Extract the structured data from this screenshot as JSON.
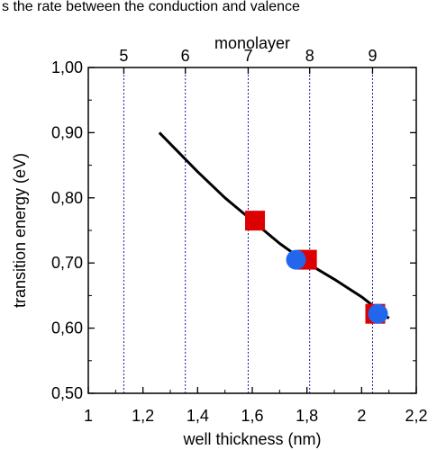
{
  "header_fragment": "s the rate between the conduction and valence",
  "chart_data": {
    "type": "scatter",
    "xlabel": "well thickness (nm)",
    "ylabel": "transition energy (eV)",
    "top_axis_label": "monolayer",
    "xlim": [
      1,
      2.2
    ],
    "ylim": [
      0.5,
      1.0
    ],
    "x_ticks": [
      "1",
      "1,2",
      "1,4",
      "1,6",
      "1,8",
      "2",
      "2,2"
    ],
    "y_ticks": [
      "0,50",
      "0,60",
      "0,70",
      "0,80",
      "0,90",
      "1,00"
    ],
    "top_ticks": [
      {
        "label": "5",
        "x": 1.13
      },
      {
        "label": "6",
        "x": 1.355
      },
      {
        "label": "7",
        "x": 1.585
      },
      {
        "label": "8",
        "x": 1.81
      },
      {
        "label": "9",
        "x": 2.04
      }
    ],
    "monolayer_lines_x": [
      1.13,
      1.355,
      1.585,
      1.81,
      2.04
    ],
    "series": [
      {
        "kind": "line",
        "color": "#000000",
        "x": [
          1.26,
          1.4,
          1.5,
          1.6,
          1.7,
          1.8,
          1.9,
          2.0,
          2.1
        ],
        "y": [
          0.9,
          0.84,
          0.8,
          0.765,
          0.73,
          0.7,
          0.675,
          0.648,
          0.615
        ]
      },
      {
        "kind": "square",
        "color": "#dd0000",
        "x": [
          1.61,
          1.8,
          2.05
        ],
        "y": [
          0.765,
          0.705,
          0.622
        ]
      },
      {
        "kind": "circle",
        "color": "#2266ee",
        "x": [
          1.76,
          2.06
        ],
        "y": [
          0.705,
          0.622
        ]
      }
    ]
  }
}
